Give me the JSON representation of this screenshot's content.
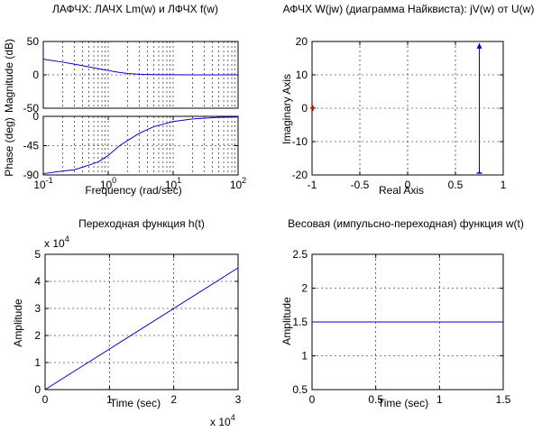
{
  "chart_data": [
    {
      "id": "bode_mag",
      "type": "line",
      "title": "ЛАФЧХ: ЛАЧХ Lm(w) и ЛФЧХ f(w)",
      "xlabel": "",
      "ylabel": "Magnitude (dB)",
      "xscale": "log",
      "xlim": [
        0.1,
        100
      ],
      "ylim": [
        -50,
        50
      ],
      "yticks": [
        "50",
        "0",
        "-50"
      ],
      "grid": true,
      "series": [
        {
          "color": "#0000cc",
          "x": [
            0.1,
            0.2,
            0.3,
            0.5,
            0.7,
            1,
            1.5,
            2,
            3,
            5,
            7,
            10,
            20,
            50,
            100
          ],
          "y": [
            23.5,
            19,
            16,
            12,
            9.3,
            6.5,
            3.5,
            2,
            0.8,
            0.3,
            0.15,
            0.1,
            0.05,
            0.02,
            0
          ]
        }
      ]
    },
    {
      "id": "bode_phase",
      "type": "line",
      "xlabel": "Frequency  (rad/sec)",
      "ylabel": "Phase (deg)",
      "xscale": "log",
      "xlim": [
        0.1,
        100
      ],
      "ylim": [
        -90,
        0
      ],
      "xticks": [
        "10",
        "10",
        "10",
        "10"
      ],
      "xtick_exponents": [
        "-1",
        "0",
        "1",
        "2"
      ],
      "yticks": [
        "0",
        "-45",
        "-90"
      ],
      "grid": true,
      "series": [
        {
          "color": "#0000cc",
          "x": [
            0.1,
            0.2,
            0.3,
            0.5,
            0.7,
            1,
            1.5,
            2,
            3,
            5,
            7,
            10,
            20,
            50,
            100
          ],
          "y": [
            -88,
            -84,
            -82,
            -75,
            -70,
            -60,
            -45,
            -37,
            -26,
            -16,
            -12,
            -8,
            -4,
            -1.6,
            -0.8
          ]
        }
      ]
    },
    {
      "id": "nyquist",
      "type": "line",
      "title": "АФЧХ W(jw) (диаграмма Найквиста): jV(w) от U(w)",
      "xlabel": "Real Axis",
      "ylabel": "Imaginary Axis",
      "xlim": [
        -1,
        1
      ],
      "ylim": [
        -20,
        20
      ],
      "xticks": [
        "-1",
        "-0.5",
        "0",
        "0.5",
        "1"
      ],
      "yticks": [
        "20",
        "10",
        "0",
        "-10",
        "-20"
      ],
      "grid": true,
      "critical_point": {
        "x": -1,
        "y": 0,
        "label": "+",
        "color": "#cc0000"
      },
      "series": [
        {
          "color": "#0000cc",
          "x": [
            0.75,
            0.75
          ],
          "y": [
            -19.5,
            19.5
          ]
        }
      ]
    },
    {
      "id": "step",
      "type": "line",
      "title": "Переходная функция h(t)",
      "xlabel": "Time (sec)",
      "ylabel": "Amplitude",
      "xlim": [
        0,
        3
      ],
      "ylim": [
        0,
        5
      ],
      "xticks": [
        "0",
        "1",
        "2",
        "3"
      ],
      "yticks": [
        "5",
        "4",
        "3",
        "2",
        "1",
        "0"
      ],
      "xmultiplier": "x 10",
      "xmultiplier_exp": "4",
      "ymultiplier": "x 10",
      "ymultiplier_exp": "4",
      "grid": true,
      "series": [
        {
          "color": "#0000cc",
          "x": [
            0,
            3
          ],
          "y": [
            0,
            4.5
          ]
        }
      ]
    },
    {
      "id": "impulse",
      "type": "line",
      "title": "Весовая (импульсно-переходная) функция w(t)",
      "xlabel": "Time (sec)",
      "ylabel": "Amplitude",
      "xlim": [
        0,
        1.5
      ],
      "ylim": [
        0.5,
        2.5
      ],
      "xticks": [
        "0",
        "0.5",
        "1",
        "1.5"
      ],
      "yticks": [
        "2.5",
        "2",
        "1.5",
        "1",
        "0.5"
      ],
      "grid": true,
      "series": [
        {
          "color": "#0000cc",
          "x": [
            0,
            1.5
          ],
          "y": [
            1.5,
            1.5
          ]
        }
      ]
    }
  ]
}
